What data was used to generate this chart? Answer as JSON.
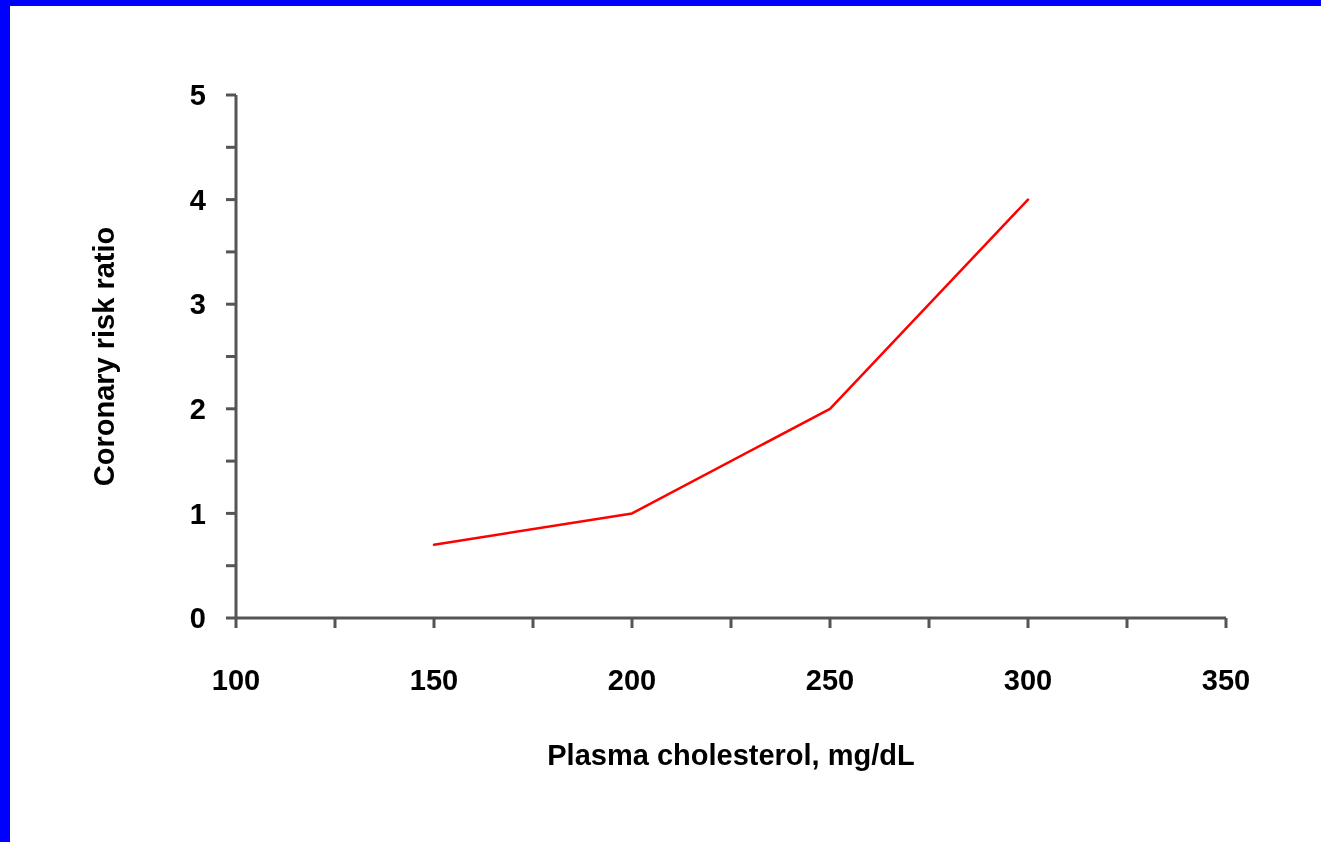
{
  "chart_data": {
    "type": "line",
    "xlabel": "Plasma cholesterol, mg/dL",
    "ylabel": "Coronary risk ratio",
    "x": [
      150,
      200,
      250,
      300
    ],
    "series": [
      {
        "color": "#ff0000",
        "values": [
          0.7,
          1,
          2,
          4
        ]
      }
    ],
    "xlim": [
      100,
      350
    ],
    "xticks": [
      100,
      {
        "value": 125,
        "label": null
      },
      150,
      {
        "value": 175,
        "label": null
      },
      200,
      {
        "value": 225,
        "label": null
      },
      250,
      {
        "value": 275,
        "label": null
      },
      300,
      {
        "value": 325,
        "label": null
      },
      350
    ],
    "ylim": [
      0,
      5
    ],
    "yticks": [
      0,
      {
        "value": 0.5,
        "label": null
      },
      1,
      {
        "value": 1.5,
        "label": null
      },
      2,
      {
        "value": 2.5,
        "label": null
      },
      3,
      {
        "value": 3.5,
        "label": null
      },
      4,
      {
        "value": 4.5,
        "label": null
      },
      5
    ],
    "grid": false,
    "marker": "none",
    "line_style": "solid"
  }
}
